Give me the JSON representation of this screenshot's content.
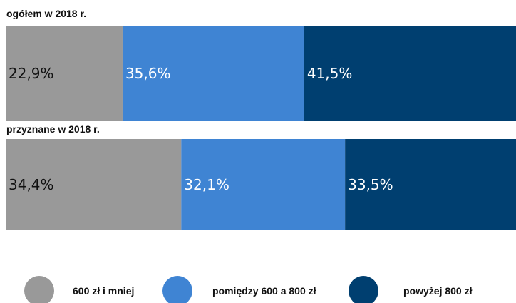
{
  "chart_data": {
    "type": "bar",
    "orientation": "horizontal",
    "stacked": true,
    "normalized": true,
    "categories": [
      "ogółem w 2018 r.",
      "przyznane w 2018 r."
    ],
    "series": [
      {
        "name": "600 zł i mniej",
        "values": [
          22.9,
          34.4
        ],
        "labels": [
          "22,9%",
          "34,4%"
        ],
        "color": "#999999",
        "text_color": "#111111"
      },
      {
        "name": "pomiędzy 600 a 800 zł",
        "values": [
          35.6,
          32.1
        ],
        "labels": [
          "35,6%",
          "32,1%"
        ],
        "color": "#3f84d3",
        "text_color": "#ffffff"
      },
      {
        "name": "powyżej 800 zł",
        "values": [
          41.5,
          33.5
        ],
        "labels": [
          "41,5%",
          "33,5%"
        ],
        "color": "#003f70",
        "text_color": "#ffffff"
      }
    ],
    "legend_position": "bottom",
    "grid": false
  }
}
